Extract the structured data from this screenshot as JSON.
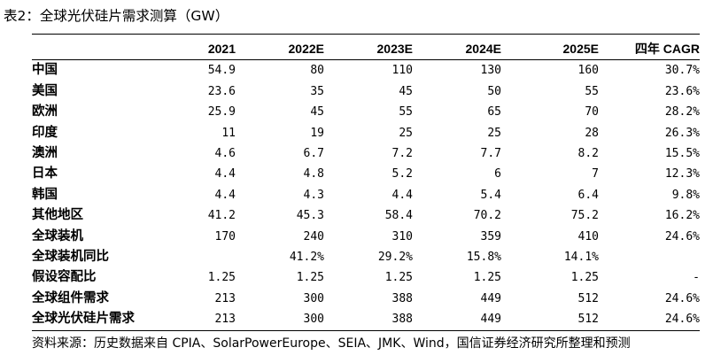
{
  "title": "表2：全球光伏硅片需求测算（GW）",
  "table": {
    "columns": [
      "2021",
      "2022E",
      "2023E",
      "2024E",
      "2025E",
      "四年 CAGR"
    ],
    "rows": [
      {
        "label": "中国",
        "values": [
          "54.9",
          "80",
          "110",
          "130",
          "160",
          "30.7%"
        ]
      },
      {
        "label": "美国",
        "values": [
          "23.6",
          "35",
          "45",
          "50",
          "55",
          "23.6%"
        ]
      },
      {
        "label": "欧洲",
        "values": [
          "25.9",
          "45",
          "55",
          "65",
          "70",
          "28.2%"
        ]
      },
      {
        "label": "印度",
        "values": [
          "11",
          "19",
          "25",
          "25",
          "28",
          "26.3%"
        ]
      },
      {
        "label": "澳洲",
        "values": [
          "4.6",
          "6.7",
          "7.2",
          "7.7",
          "8.2",
          "15.5%"
        ]
      },
      {
        "label": "日本",
        "values": [
          "4.4",
          "4.8",
          "5.2",
          "6",
          "7",
          "12.3%"
        ]
      },
      {
        "label": "韩国",
        "values": [
          "4.4",
          "4.3",
          "4.4",
          "5.4",
          "6.4",
          "9.8%"
        ]
      },
      {
        "label": "其他地区",
        "values": [
          "41.2",
          "45.3",
          "58.4",
          "70.2",
          "75.2",
          "16.2%"
        ]
      },
      {
        "label": "全球装机",
        "values": [
          "170",
          "240",
          "310",
          "359",
          "410",
          "24.6%"
        ]
      },
      {
        "label": "全球装机同比",
        "values": [
          "",
          "41.2%",
          "29.2%",
          "15.8%",
          "14.1%",
          ""
        ]
      },
      {
        "label": "假设容配比",
        "values": [
          "1.25",
          "1.25",
          "1.25",
          "1.25",
          "1.25",
          "-"
        ]
      },
      {
        "label": "全球组件需求",
        "values": [
          "213",
          "300",
          "388",
          "449",
          "512",
          "24.6%"
        ]
      },
      {
        "label": "全球光伏硅片需求",
        "values": [
          "213",
          "300",
          "388",
          "449",
          "512",
          "24.6%"
        ]
      }
    ]
  },
  "source": "资料来源：历史数据来自 CPIA、SolarPowerEurope、SEIA、JMK、Wind，国信证券经济研究所整理和预测"
}
